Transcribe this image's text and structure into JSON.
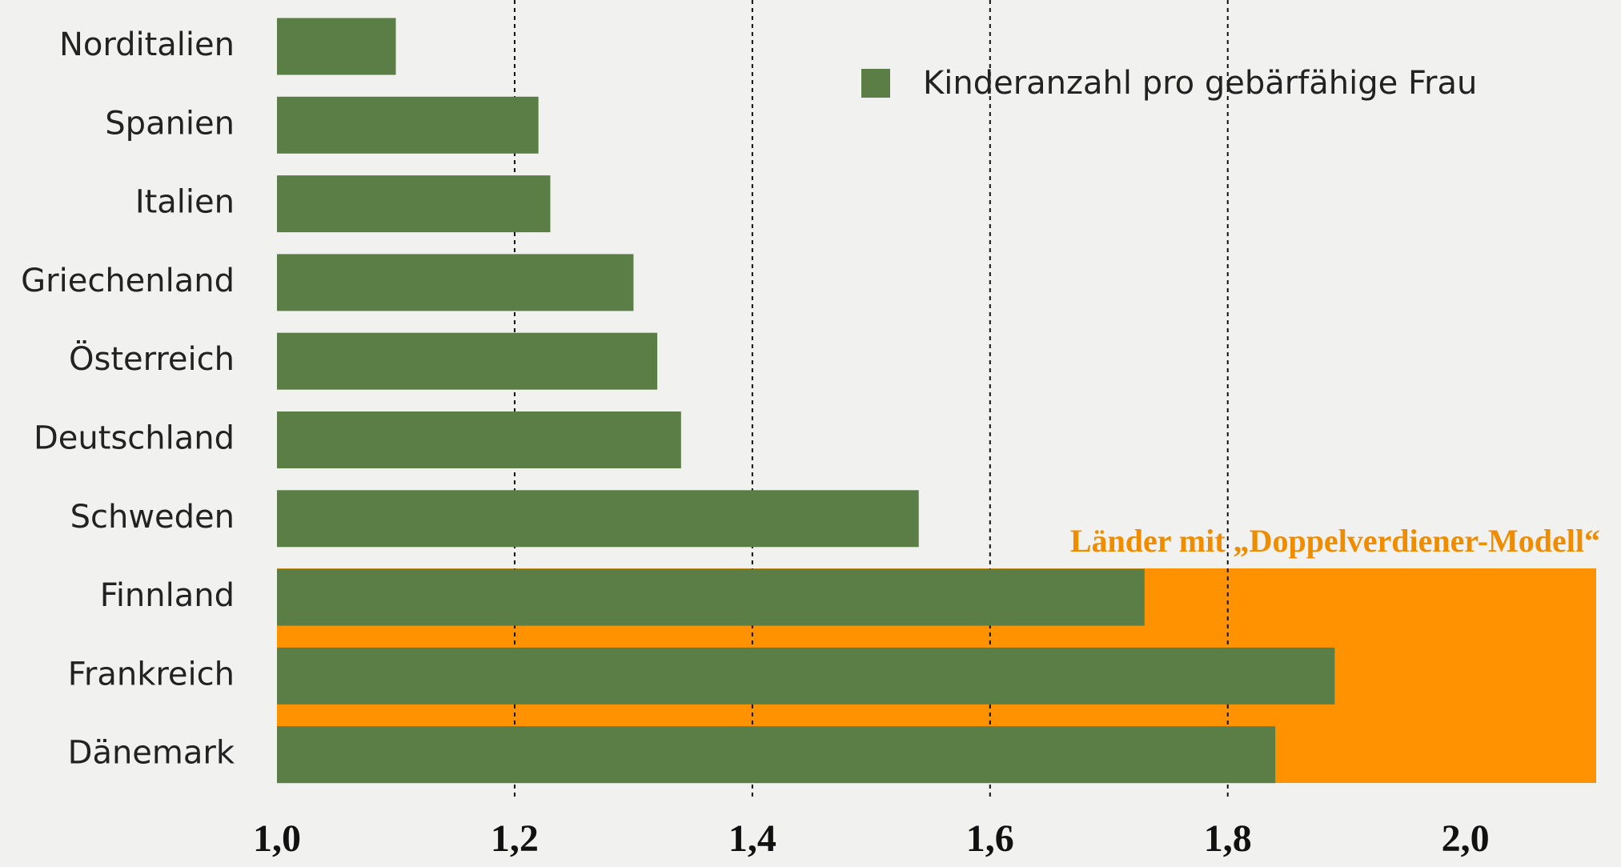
{
  "chart_data": {
    "type": "bar",
    "orientation": "horizontal",
    "categories": [
      "Norditalien",
      "Spanien",
      "Italien",
      "Griechenland",
      "Österreich",
      "Deutschland",
      "Schweden",
      "Finnland",
      "Frankreich",
      "Dänemark"
    ],
    "series": [
      {
        "name": "Kinderanzahl  pro gebärfähige Frau",
        "color": "#5b7d46",
        "values": [
          1.1,
          1.22,
          1.23,
          1.3,
          1.32,
          1.34,
          1.54,
          1.73,
          1.89,
          1.84
        ]
      }
    ],
    "xlim": [
      1.0,
      2.11
    ],
    "xticks": [
      {
        "value": 1.0,
        "label": "1,0"
      },
      {
        "value": 1.2,
        "label": "1,2"
      },
      {
        "value": 1.4,
        "label": "1,4"
      },
      {
        "value": 1.6,
        "label": "1,6"
      },
      {
        "value": 1.8,
        "label": "1,8"
      },
      {
        "value": 2.0,
        "label": "2,0"
      }
    ],
    "annotation": "Länder mit „Doppelverdiener-Modell“",
    "highlight_color": "#ff9200",
    "grid": true
  }
}
